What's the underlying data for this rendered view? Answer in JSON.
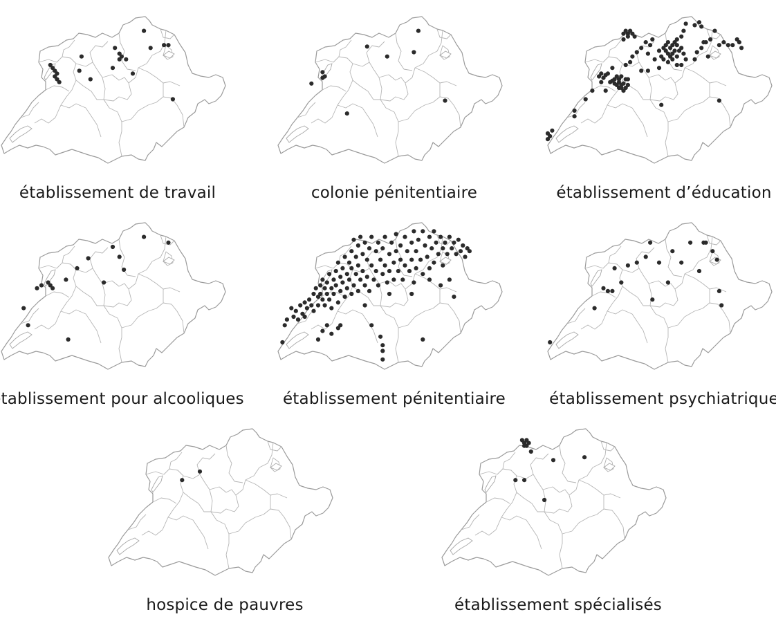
{
  "maps": [
    {
      "id": "travail",
      "label": "établissement de travail",
      "points": [
        [
          0.22,
          0.34
        ],
        [
          0.23,
          0.36
        ],
        [
          0.24,
          0.38
        ],
        [
          0.25,
          0.4
        ],
        [
          0.24,
          0.42
        ],
        [
          0.25,
          0.44
        ],
        [
          0.26,
          0.46
        ],
        [
          0.36,
          0.28
        ],
        [
          0.35,
          0.38
        ],
        [
          0.4,
          0.44
        ],
        [
          0.51,
          0.22
        ],
        [
          0.53,
          0.26
        ],
        [
          0.54,
          0.28
        ],
        [
          0.56,
          0.3
        ],
        [
          0.53,
          0.3
        ],
        [
          0.5,
          0.36
        ],
        [
          0.59,
          0.4
        ],
        [
          0.64,
          0.1
        ],
        [
          0.67,
          0.22
        ],
        [
          0.73,
          0.2
        ],
        [
          0.75,
          0.2
        ],
        [
          0.77,
          0.58
        ]
      ]
    },
    {
      "id": "colonie",
      "label": "colonie pénitentiaire",
      "points": [
        [
          0.15,
          0.47
        ],
        [
          0.2,
          0.39
        ],
        [
          0.21,
          0.42
        ],
        [
          0.2,
          0.43
        ],
        [
          0.31,
          0.68
        ],
        [
          0.4,
          0.21
        ],
        [
          0.49,
          0.28
        ],
        [
          0.61,
          0.25
        ],
        [
          0.63,
          0.1
        ],
        [
          0.75,
          0.59
        ]
      ]
    },
    {
      "id": "education",
      "label": "établissement d’éducation",
      "points": [
        [
          0.0,
          0.82
        ],
        [
          0.01,
          0.84
        ],
        [
          0.0,
          0.86
        ],
        [
          0.02,
          0.8
        ],
        [
          0.12,
          0.66
        ],
        [
          0.12,
          0.7
        ],
        [
          0.17,
          0.58
        ],
        [
          0.2,
          0.52
        ],
        [
          0.24,
          0.46
        ],
        [
          0.25,
          0.43
        ],
        [
          0.26,
          0.41
        ],
        [
          0.24,
          0.4
        ],
        [
          0.23,
          0.42
        ],
        [
          0.27,
          0.4
        ],
        [
          0.28,
          0.46
        ],
        [
          0.29,
          0.36
        ],
        [
          0.26,
          0.52
        ],
        [
          0.3,
          0.47
        ],
        [
          0.31,
          0.48
        ],
        [
          0.32,
          0.46
        ],
        [
          0.33,
          0.48
        ],
        [
          0.34,
          0.47
        ],
        [
          0.35,
          0.44
        ],
        [
          0.33,
          0.42
        ],
        [
          0.32,
          0.44
        ],
        [
          0.31,
          0.42
        ],
        [
          0.3,
          0.44
        ],
        [
          0.29,
          0.45
        ],
        [
          0.36,
          0.48
        ],
        [
          0.35,
          0.5
        ],
        [
          0.34,
          0.52
        ],
        [
          0.33,
          0.5
        ],
        [
          0.32,
          0.5
        ],
        [
          0.36,
          0.44
        ],
        [
          0.37,
          0.32
        ],
        [
          0.35,
          0.34
        ],
        [
          0.38,
          0.28
        ],
        [
          0.4,
          0.25
        ],
        [
          0.34,
          0.12
        ],
        [
          0.35,
          0.1
        ],
        [
          0.36,
          0.12
        ],
        [
          0.37,
          0.1
        ],
        [
          0.36,
          0.14
        ],
        [
          0.38,
          0.12
        ],
        [
          0.39,
          0.14
        ],
        [
          0.34,
          0.16
        ],
        [
          0.42,
          0.22
        ],
        [
          0.44,
          0.18
        ],
        [
          0.46,
          0.2
        ],
        [
          0.47,
          0.16
        ],
        [
          0.45,
          0.26
        ],
        [
          0.48,
          0.3
        ],
        [
          0.5,
          0.24
        ],
        [
          0.51,
          0.28
        ],
        [
          0.52,
          0.22
        ],
        [
          0.53,
          0.2
        ],
        [
          0.54,
          0.18
        ],
        [
          0.55,
          0.22
        ],
        [
          0.56,
          0.2
        ],
        [
          0.57,
          0.18
        ],
        [
          0.58,
          0.16
        ],
        [
          0.57,
          0.24
        ],
        [
          0.56,
          0.26
        ],
        [
          0.55,
          0.28
        ],
        [
          0.54,
          0.26
        ],
        [
          0.53,
          0.24
        ],
        [
          0.52,
          0.3
        ],
        [
          0.54,
          0.32
        ],
        [
          0.56,
          0.3
        ],
        [
          0.58,
          0.28
        ],
        [
          0.59,
          0.24
        ],
        [
          0.58,
          0.2
        ],
        [
          0.6,
          0.14
        ],
        [
          0.61,
          0.1
        ],
        [
          0.6,
          0.22
        ],
        [
          0.61,
          0.26
        ],
        [
          0.62,
          0.3
        ],
        [
          0.5,
          0.36
        ],
        [
          0.45,
          0.38
        ],
        [
          0.42,
          0.38
        ],
        [
          0.62,
          0.05
        ],
        [
          0.66,
          0.06
        ],
        [
          0.68,
          0.04
        ],
        [
          0.69,
          0.07
        ],
        [
          0.7,
          0.18
        ],
        [
          0.69,
          0.22
        ],
        [
          0.71,
          0.18
        ],
        [
          0.73,
          0.16
        ],
        [
          0.75,
          0.1
        ],
        [
          0.77,
          0.2
        ],
        [
          0.79,
          0.18
        ],
        [
          0.81,
          0.2
        ],
        [
          0.83,
          0.2
        ],
        [
          0.85,
          0.16
        ],
        [
          0.86,
          0.18
        ],
        [
          0.87,
          0.22
        ],
        [
          0.72,
          0.28
        ],
        [
          0.67,
          0.25
        ],
        [
          0.66,
          0.3
        ],
        [
          0.51,
          0.62
        ],
        [
          0.77,
          0.59
        ],
        [
          0.58,
          0.34
        ],
        [
          0.6,
          0.34
        ]
      ]
    },
    {
      "id": "alcooliques",
      "label": "établissement pour alcooliques",
      "points": [
        [
          0.1,
          0.6
        ],
        [
          0.12,
          0.72
        ],
        [
          0.16,
          0.46
        ],
        [
          0.18,
          0.44
        ],
        [
          0.21,
          0.42
        ],
        [
          0.22,
          0.44
        ],
        [
          0.23,
          0.46
        ],
        [
          0.29,
          0.4
        ],
        [
          0.34,
          0.32
        ],
        [
          0.39,
          0.25
        ],
        [
          0.46,
          0.42
        ],
        [
          0.5,
          0.17
        ],
        [
          0.53,
          0.24
        ],
        [
          0.55,
          0.33
        ],
        [
          0.64,
          0.1
        ],
        [
          0.75,
          0.14
        ],
        [
          0.3,
          0.82
        ]
      ]
    },
    {
      "id": "penitentiaire",
      "label": "établissement pénitentiaire",
      "points": [
        [
          0.02,
          0.84
        ],
        [
          0.03,
          0.72
        ],
        [
          0.04,
          0.68
        ],
        [
          0.06,
          0.6
        ],
        [
          0.07,
          0.66
        ],
        [
          0.08,
          0.62
        ],
        [
          0.09,
          0.68
        ],
        [
          0.1,
          0.58
        ],
        [
          0.11,
          0.64
        ],
        [
          0.12,
          0.56
        ],
        [
          0.12,
          0.66
        ],
        [
          0.13,
          0.6
        ],
        [
          0.14,
          0.54
        ],
        [
          0.15,
          0.58
        ],
        [
          0.16,
          0.5
        ],
        [
          0.16,
          0.62
        ],
        [
          0.17,
          0.46
        ],
        [
          0.18,
          0.52
        ],
        [
          0.18,
          0.58
        ],
        [
          0.19,
          0.44
        ],
        [
          0.19,
          0.5
        ],
        [
          0.2,
          0.4
        ],
        [
          0.2,
          0.54
        ],
        [
          0.21,
          0.46
        ],
        [
          0.21,
          0.58
        ],
        [
          0.22,
          0.42
        ],
        [
          0.22,
          0.5
        ],
        [
          0.23,
          0.36
        ],
        [
          0.23,
          0.54
        ],
        [
          0.24,
          0.46
        ],
        [
          0.24,
          0.6
        ],
        [
          0.25,
          0.4
        ],
        [
          0.25,
          0.5
        ],
        [
          0.26,
          0.34
        ],
        [
          0.26,
          0.44
        ],
        [
          0.27,
          0.56
        ],
        [
          0.27,
          0.28
        ],
        [
          0.28,
          0.38
        ],
        [
          0.28,
          0.48
        ],
        [
          0.29,
          0.32
        ],
        [
          0.29,
          0.42
        ],
        [
          0.3,
          0.24
        ],
        [
          0.3,
          0.52
        ],
        [
          0.31,
          0.36
        ],
        [
          0.31,
          0.46
        ],
        [
          0.32,
          0.28
        ],
        [
          0.32,
          0.4
        ],
        [
          0.33,
          0.2
        ],
        [
          0.33,
          0.32
        ],
        [
          0.33,
          0.5
        ],
        [
          0.34,
          0.12
        ],
        [
          0.34,
          0.44
        ],
        [
          0.35,
          0.24
        ],
        [
          0.35,
          0.36
        ],
        [
          0.36,
          0.16
        ],
        [
          0.36,
          0.3
        ],
        [
          0.36,
          0.48
        ],
        [
          0.37,
          0.1
        ],
        [
          0.37,
          0.4
        ],
        [
          0.38,
          0.22
        ],
        [
          0.38,
          0.34
        ],
        [
          0.39,
          0.14
        ],
        [
          0.39,
          0.44
        ],
        [
          0.4,
          0.26
        ],
        [
          0.4,
          0.38
        ],
        [
          0.41,
          0.18
        ],
        [
          0.41,
          0.48
        ],
        [
          0.42,
          0.1
        ],
        [
          0.42,
          0.3
        ],
        [
          0.43,
          0.4
        ],
        [
          0.44,
          0.2
        ],
        [
          0.44,
          0.34
        ],
        [
          0.45,
          0.14
        ],
        [
          0.45,
          0.44
        ],
        [
          0.46,
          0.26
        ],
        [
          0.47,
          0.36
        ],
        [
          0.47,
          0.18
        ],
        [
          0.48,
          0.1
        ],
        [
          0.48,
          0.3
        ],
        [
          0.49,
          0.42
        ],
        [
          0.5,
          0.22
        ],
        [
          0.5,
          0.34
        ],
        [
          0.51,
          0.14
        ],
        [
          0.52,
          0.28
        ],
        [
          0.52,
          0.4
        ],
        [
          0.53,
          0.08
        ],
        [
          0.53,
          0.2
        ],
        [
          0.54,
          0.34
        ],
        [
          0.55,
          0.16
        ],
        [
          0.55,
          0.26
        ],
        [
          0.56,
          0.4
        ],
        [
          0.57,
          0.1
        ],
        [
          0.57,
          0.3
        ],
        [
          0.58,
          0.2
        ],
        [
          0.59,
          0.34
        ],
        [
          0.6,
          0.14
        ],
        [
          0.6,
          0.26
        ],
        [
          0.61,
          0.06
        ],
        [
          0.61,
          0.42
        ],
        [
          0.62,
          0.2
        ],
        [
          0.62,
          0.32
        ],
        [
          0.63,
          0.12
        ],
        [
          0.64,
          0.26
        ],
        [
          0.65,
          0.06
        ],
        [
          0.65,
          0.36
        ],
        [
          0.66,
          0.16
        ],
        [
          0.67,
          0.24
        ],
        [
          0.68,
          0.1
        ],
        [
          0.68,
          0.32
        ],
        [
          0.69,
          0.18
        ],
        [
          0.7,
          0.06
        ],
        [
          0.7,
          0.28
        ],
        [
          0.71,
          0.14
        ],
        [
          0.72,
          0.22
        ],
        [
          0.73,
          0.1
        ],
        [
          0.74,
          0.18
        ],
        [
          0.74,
          0.3
        ],
        [
          0.75,
          0.14
        ],
        [
          0.76,
          0.22
        ],
        [
          0.77,
          0.1
        ],
        [
          0.78,
          0.18
        ],
        [
          0.79,
          0.14
        ],
        [
          0.8,
          0.22
        ],
        [
          0.81,
          0.12
        ],
        [
          0.82,
          0.2
        ],
        [
          0.83,
          0.16
        ],
        [
          0.84,
          0.24
        ],
        [
          0.85,
          0.18
        ],
        [
          0.86,
          0.2
        ],
        [
          0.73,
          0.44
        ],
        [
          0.77,
          0.4
        ],
        [
          0.79,
          0.52
        ],
        [
          0.2,
          0.76
        ],
        [
          0.22,
          0.72
        ],
        [
          0.24,
          0.78
        ],
        [
          0.27,
          0.74
        ],
        [
          0.28,
          0.72
        ],
        [
          0.42,
          0.72
        ],
        [
          0.46,
          0.8
        ],
        [
          0.47,
          0.86
        ],
        [
          0.47,
          0.9
        ],
        [
          0.47,
          0.96
        ],
        [
          0.65,
          0.82
        ],
        [
          0.18,
          0.82
        ],
        [
          0.39,
          0.58
        ],
        [
          0.5,
          0.5
        ],
        [
          0.6,
          0.5
        ],
        [
          0.68,
          0.4
        ]
      ]
    },
    {
      "id": "psychiatrique",
      "label": "établissement psychiatrique",
      "points": [
        [
          0.01,
          0.84
        ],
        [
          0.21,
          0.6
        ],
        [
          0.25,
          0.46
        ],
        [
          0.27,
          0.48
        ],
        [
          0.29,
          0.48
        ],
        [
          0.3,
          0.32
        ],
        [
          0.33,
          0.42
        ],
        [
          0.36,
          0.3
        ],
        [
          0.4,
          0.28
        ],
        [
          0.44,
          0.24
        ],
        [
          0.46,
          0.14
        ],
        [
          0.47,
          0.54
        ],
        [
          0.5,
          0.28
        ],
        [
          0.54,
          0.42
        ],
        [
          0.56,
          0.2
        ],
        [
          0.6,
          0.28
        ],
        [
          0.64,
          0.14
        ],
        [
          0.68,
          0.34
        ],
        [
          0.7,
          0.14
        ],
        [
          0.71,
          0.14
        ],
        [
          0.74,
          0.2
        ],
        [
          0.76,
          0.26
        ],
        [
          0.77,
          0.48
        ],
        [
          0.78,
          0.58
        ]
      ]
    },
    {
      "id": "pauvres",
      "label": "hospice de pauvres",
      "points": [
        [
          0.33,
          0.36
        ],
        [
          0.41,
          0.3
        ]
      ]
    },
    {
      "id": "specialises",
      "label": "établissement spécialisés",
      "points": [
        [
          0.36,
          0.08
        ],
        [
          0.37,
          0.1
        ],
        [
          0.38,
          0.08
        ],
        [
          0.37,
          0.12
        ],
        [
          0.39,
          0.1
        ],
        [
          0.38,
          0.12
        ],
        [
          0.4,
          0.16
        ],
        [
          0.5,
          0.22
        ],
        [
          0.64,
          0.2
        ],
        [
          0.33,
          0.36
        ],
        [
          0.37,
          0.36
        ],
        [
          0.46,
          0.5
        ]
      ]
    }
  ]
}
